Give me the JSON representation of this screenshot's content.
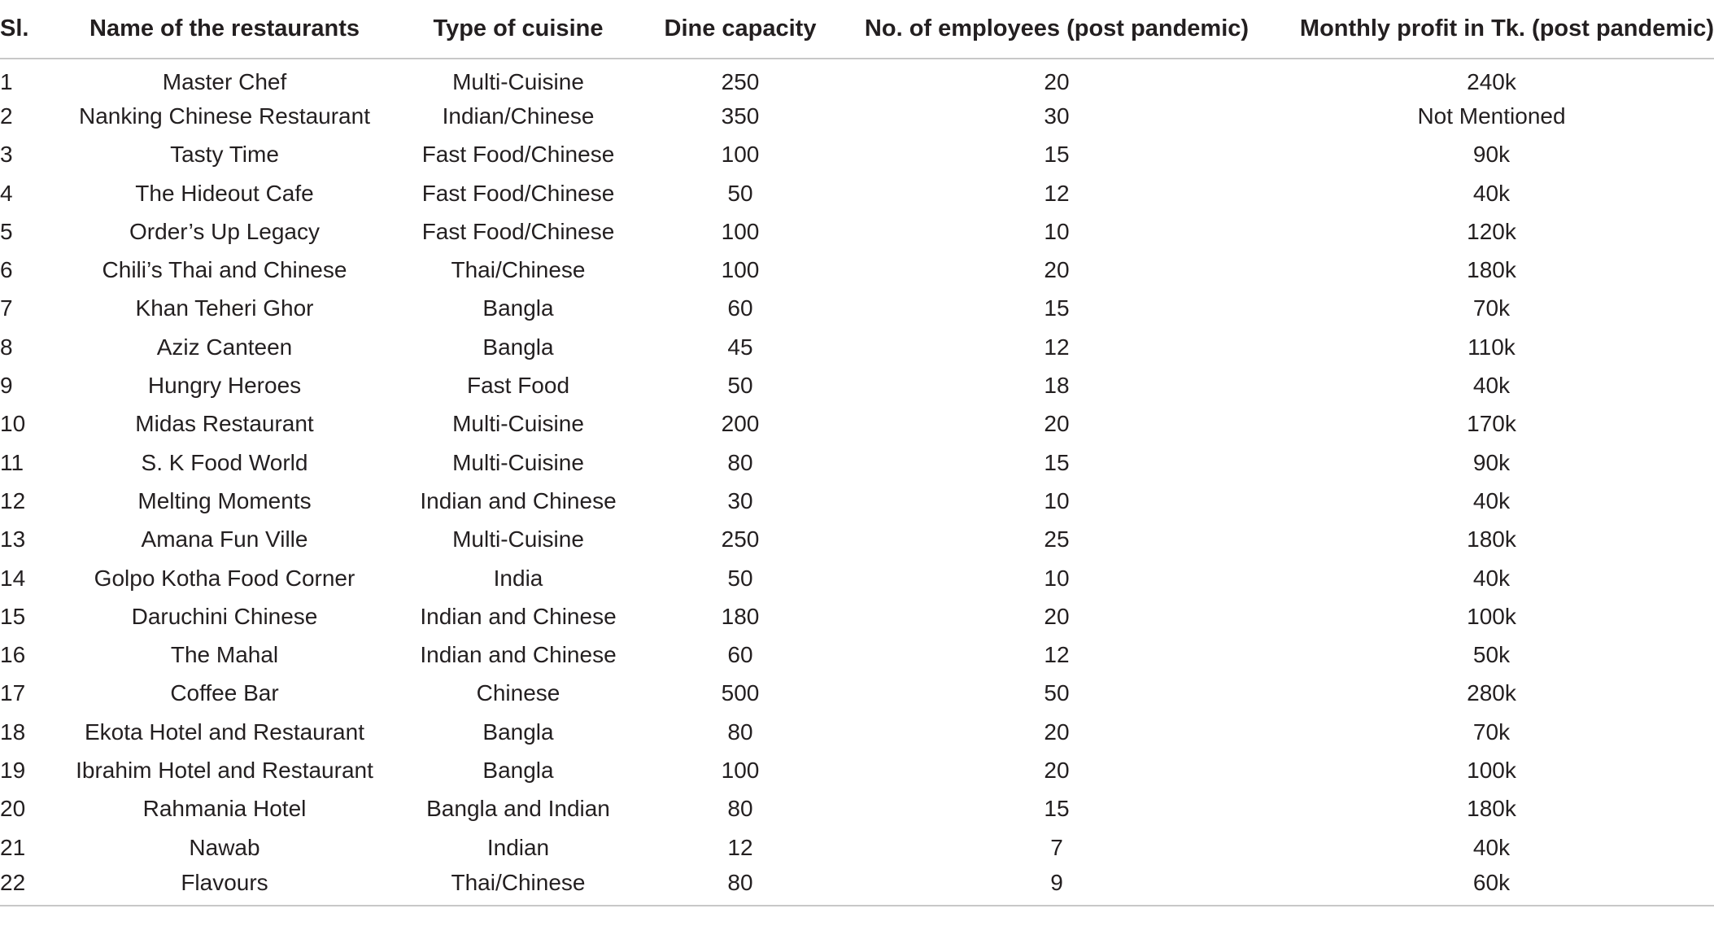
{
  "table": {
    "headers": {
      "sl": "Sl.",
      "name": "Name of the restaurants",
      "cuisine": "Type of cuisine",
      "dine": "Dine capacity",
      "employees": "No. of employees (post pandemic)",
      "profit": "Monthly profit in Tk. (post pandemic)"
    },
    "rows": [
      {
        "sl": "1",
        "name": "Master Chef",
        "cuisine": "Multi-Cuisine",
        "dine": "250",
        "employees": "20",
        "profit": "240k"
      },
      {
        "sl": "2",
        "name": "Nanking Chinese Restaurant",
        "cuisine": "Indian/Chinese",
        "dine": "350",
        "employees": "30",
        "profit": "Not Mentioned"
      },
      {
        "sl": "3",
        "name": "Tasty Time",
        "cuisine": "Fast Food/Chinese",
        "dine": "100",
        "employees": "15",
        "profit": "90k"
      },
      {
        "sl": "4",
        "name": "The Hideout Cafe",
        "cuisine": "Fast Food/Chinese",
        "dine": "50",
        "employees": "12",
        "profit": "40k"
      },
      {
        "sl": "5",
        "name": "Order’s Up Legacy",
        "cuisine": "Fast Food/Chinese",
        "dine": "100",
        "employees": "10",
        "profit": "120k"
      },
      {
        "sl": "6",
        "name": "Chili’s Thai and Chinese",
        "cuisine": "Thai/Chinese",
        "dine": "100",
        "employees": "20",
        "profit": "180k"
      },
      {
        "sl": "7",
        "name": "Khan Teheri Ghor",
        "cuisine": "Bangla",
        "dine": "60",
        "employees": "15",
        "profit": "70k"
      },
      {
        "sl": "8",
        "name": "Aziz Canteen",
        "cuisine": "Bangla",
        "dine": "45",
        "employees": "12",
        "profit": "110k"
      },
      {
        "sl": "9",
        "name": "Hungry Heroes",
        "cuisine": "Fast Food",
        "dine": "50",
        "employees": "18",
        "profit": "40k"
      },
      {
        "sl": "10",
        "name": "Midas Restaurant",
        "cuisine": "Multi-Cuisine",
        "dine": "200",
        "employees": "20",
        "profit": "170k"
      },
      {
        "sl": "11",
        "name": "S. K Food World",
        "cuisine": "Multi-Cuisine",
        "dine": "80",
        "employees": "15",
        "profit": "90k"
      },
      {
        "sl": "12",
        "name": "Melting Moments",
        "cuisine": "Indian and Chinese",
        "dine": "30",
        "employees": "10",
        "profit": "40k"
      },
      {
        "sl": "13",
        "name": "Amana Fun Ville",
        "cuisine": "Multi-Cuisine",
        "dine": "250",
        "employees": "25",
        "profit": "180k"
      },
      {
        "sl": "14",
        "name": "Golpo Kotha Food Corner",
        "cuisine": "India",
        "dine": "50",
        "employees": "10",
        "profit": "40k"
      },
      {
        "sl": "15",
        "name": "Daruchini Chinese",
        "cuisine": "Indian and Chinese",
        "dine": "180",
        "employees": "20",
        "profit": "100k"
      },
      {
        "sl": "16",
        "name": "The Mahal",
        "cuisine": "Indian and Chinese",
        "dine": "60",
        "employees": "12",
        "profit": "50k"
      },
      {
        "sl": "17",
        "name": "Coffee Bar",
        "cuisine": "Chinese",
        "dine": "500",
        "employees": "50",
        "profit": "280k"
      },
      {
        "sl": "18",
        "name": "Ekota Hotel and Restaurant",
        "cuisine": "Bangla",
        "dine": "80",
        "employees": "20",
        "profit": "70k"
      },
      {
        "sl": "19",
        "name": "Ibrahim Hotel and Restaurant",
        "cuisine": "Bangla",
        "dine": "100",
        "employees": "20",
        "profit": "100k"
      },
      {
        "sl": "20",
        "name": "Rahmania Hotel",
        "cuisine": "Bangla and Indian",
        "dine": "80",
        "employees": "15",
        "profit": "180k"
      },
      {
        "sl": "21",
        "name": "Nawab",
        "cuisine": "Indian",
        "dine": "12",
        "employees": "7",
        "profit": "40k"
      },
      {
        "sl": "22",
        "name": "Flavours",
        "cuisine": "Thai/Chinese",
        "dine": "80",
        "employees": "9",
        "profit": "60k"
      }
    ]
  }
}
